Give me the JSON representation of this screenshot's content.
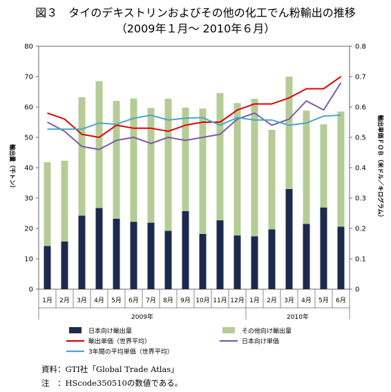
{
  "title_line1": "図３　タイのデキストリンおよびその他の化工でん粉輸出の推移",
  "title_line2": "（2009年１月～ 2010年６月）",
  "footnotes": {
    "source": "資料：GTI社「Global Trade Atlas」",
    "note": "注　：HScode350510の数値である。"
  },
  "chart_data": {
    "type": "bar",
    "bar_mode": "stacked",
    "categories": [
      "1月",
      "2月",
      "3月",
      "4月",
      "5月",
      "6月",
      "7月",
      "8月",
      "9月",
      "10月",
      "11月",
      "12月",
      "1月",
      "2月",
      "3月",
      "4月",
      "5月",
      "6月"
    ],
    "year_groups": [
      {
        "label": "2009年",
        "start": 0,
        "end": 11
      },
      {
        "label": "2010年",
        "start": 12,
        "end": 17
      }
    ],
    "y_left": {
      "label": "輸出量（千トン）",
      "lim": [
        0,
        80
      ],
      "ticks": [
        0,
        10,
        20,
        30,
        40,
        50,
        60,
        70,
        80
      ]
    },
    "y_right": {
      "label": "輸出単価ＦＯＢ（米ドル／キログラム）",
      "lim": [
        0,
        0.8
      ],
      "ticks": [
        "0",
        "0.1",
        "0.2",
        "0.3",
        "0.4",
        "0.5",
        "0.6",
        "0.7",
        "0.8"
      ]
    },
    "bar_series": [
      {
        "name": "日本向け輸出量",
        "color": "#1c2a4e",
        "values": [
          14.2,
          15.7,
          24.2,
          26.7,
          23.2,
          22.2,
          21.9,
          19.2,
          25.7,
          18.2,
          22.7,
          17.7,
          17.4,
          19.7,
          33.0,
          21.5,
          26.9,
          20.6
        ]
      },
      {
        "name": "その他向け輸出量",
        "color": "#b5cc96",
        "values": [
          27.6,
          26.6,
          39.0,
          41.8,
          38.8,
          40.6,
          37.8,
          43.5,
          34.1,
          41.3,
          41.9,
          43.6,
          45.3,
          32.8,
          37.0,
          37.3,
          27.4,
          37.9
        ]
      }
    ],
    "line_series": [
      {
        "name": "輸出単価（世界平均）",
        "color": "#e00000",
        "axis": "right",
        "values": [
          0.58,
          0.56,
          0.51,
          0.5,
          0.54,
          0.53,
          0.53,
          0.52,
          0.54,
          0.55,
          0.55,
          0.59,
          0.61,
          0.61,
          0.63,
          0.66,
          0.66,
          0.7
        ]
      },
      {
        "name": "日本向け単価",
        "color": "#7a5aa6",
        "axis": "right",
        "values": [
          0.55,
          0.52,
          0.47,
          0.46,
          0.49,
          0.5,
          0.48,
          0.5,
          0.49,
          0.5,
          0.51,
          0.56,
          0.58,
          0.54,
          0.56,
          0.62,
          0.59,
          0.68
        ]
      },
      {
        "name": "3年間の平均単価（世界平均）",
        "color": "#4aa6c8",
        "axis": "right",
        "values": [
          0.527,
          0.527,
          0.527,
          0.547,
          0.543,
          0.563,
          0.573,
          0.557,
          0.563,
          0.565,
          0.54,
          0.565,
          0.557,
          0.557,
          0.54,
          0.547,
          0.57,
          0.573
        ]
      }
    ],
    "legend_placement": "bottom",
    "grid": false
  }
}
